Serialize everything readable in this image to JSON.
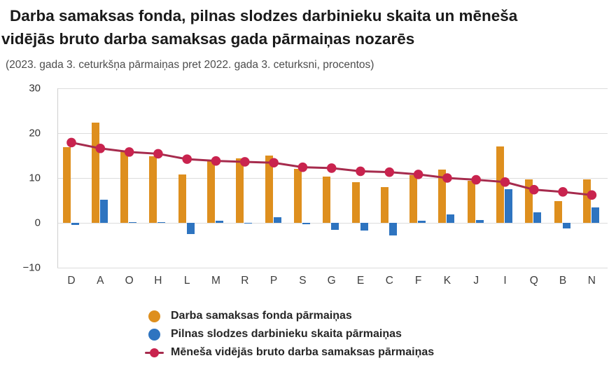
{
  "header": {
    "title_lines": [
      "Darba samaksas fonda, pilnas slodzes darbinieku skaita un mēneša",
      "vidējās bruto darba samaksas gada pārmaiņas nozarēs"
    ],
    "subtitle": "(2023. gada 3. ceturkšņa pārmaiņas pret 2022. gada 3. ceturksni, procentos)"
  },
  "chart_data": {
    "type": "bar",
    "title": "Darba samaksas fonda, pilnas slodzes darbinieku skaita un mēneša vidējās bruto darba samaksas gada pārmaiņas nozarēs",
    "subtitle": "(2023. gada 3. ceturkšņa pārmaiņas pret 2022. gada 3. ceturksni, procentos)",
    "categories": [
      "D",
      "A",
      "O",
      "H",
      "L",
      "M",
      "R",
      "P",
      "S",
      "G",
      "E",
      "C",
      "F",
      "K",
      "J",
      "I",
      "Q",
      "B",
      "N"
    ],
    "series": [
      {
        "id": "fund",
        "name": "Darba samaksas fonda pārmaiņas",
        "kind": "bar",
        "color": "#DE8F1E",
        "values": [
          16.8,
          22.3,
          15.8,
          14.8,
          10.8,
          13.7,
          14.4,
          15.0,
          12.1,
          10.3,
          9.0,
          7.9,
          10.6,
          11.8,
          9.4,
          17.1,
          9.7,
          4.8,
          9.7
        ]
      },
      {
        "id": "employees",
        "name": "Pilnas slodzes darbinieku skaita pārmaiņas",
        "kind": "bar",
        "color": "#2E74C0",
        "values": [
          -0.4,
          5.2,
          0.1,
          0.1,
          -2.5,
          0.4,
          -0.2,
          1.3,
          -0.3,
          -1.6,
          -1.7,
          -2.8,
          0.4,
          1.9,
          0.6,
          7.5,
          2.4,
          -1.2,
          3.5
        ]
      },
      {
        "id": "wage",
        "name": "Mēneša vidējās bruto darba samaksas pārmaiņas",
        "kind": "line",
        "color": "#C9234E",
        "line_color": "#A62B4D",
        "values": [
          17.9,
          16.6,
          15.8,
          15.4,
          14.2,
          13.8,
          13.6,
          13.4,
          12.4,
          12.2,
          11.5,
          11.3,
          10.8,
          10.0,
          9.6,
          9.1,
          7.4,
          6.9,
          6.2
        ]
      }
    ],
    "xlabel": "",
    "ylabel": "",
    "ylim": [
      -10,
      30
    ],
    "y_ticks": [
      30,
      20,
      10,
      0,
      -10
    ],
    "y_tick_labels": [
      "30",
      "20",
      "10",
      "0",
      "−10"
    ],
    "grid": true,
    "legend_position": "bottom"
  }
}
